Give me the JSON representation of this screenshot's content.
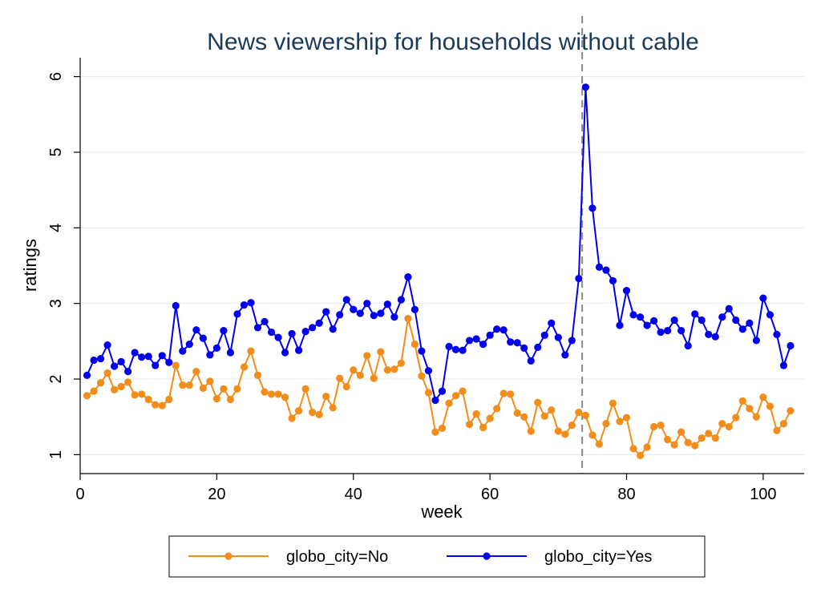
{
  "chart_data": {
    "type": "line",
    "title": "News viewership for households without cable",
    "xlabel": "week",
    "ylabel": "ratings",
    "xlim": [
      0,
      106
    ],
    "ylim": [
      0.75,
      6.25
    ],
    "x_ticks": [
      "0",
      "20",
      "40",
      "60",
      "80",
      "100"
    ],
    "y_ticks": [
      "1",
      "2",
      "3",
      "4",
      "5",
      "6"
    ],
    "grid": "horizontal",
    "legend_position": "bottom",
    "reference_line": {
      "x": 73.5,
      "style": "dashed",
      "color": "#888888"
    },
    "x": [
      1,
      2,
      3,
      4,
      5,
      6,
      7,
      8,
      9,
      10,
      11,
      12,
      13,
      14,
      15,
      16,
      17,
      18,
      19,
      20,
      21,
      22,
      23,
      24,
      25,
      26,
      27,
      28,
      29,
      30,
      31,
      32,
      33,
      34,
      35,
      36,
      37,
      38,
      39,
      40,
      41,
      42,
      43,
      44,
      45,
      46,
      47,
      48,
      49,
      50,
      51,
      52,
      53,
      54,
      55,
      56,
      57,
      58,
      59,
      60,
      61,
      62,
      63,
      64,
      65,
      66,
      67,
      68,
      69,
      70,
      71,
      72,
      73,
      74,
      75,
      76,
      77,
      78,
      79,
      80,
      81,
      82,
      83,
      84,
      85,
      86,
      87,
      88,
      89,
      90,
      91,
      92,
      93,
      94,
      95,
      96,
      97,
      98,
      99,
      100,
      101,
      102,
      103,
      104
    ],
    "series": [
      {
        "name": "globo_city=No",
        "color": "#f28c1a",
        "values": [
          1.78,
          1.84,
          1.95,
          2.08,
          1.86,
          1.9,
          1.96,
          1.79,
          1.8,
          1.73,
          1.66,
          1.65,
          1.73,
          2.18,
          1.92,
          1.92,
          2.1,
          1.88,
          1.97,
          1.74,
          1.87,
          1.73,
          1.87,
          2.16,
          2.37,
          2.05,
          1.83,
          1.8,
          1.8,
          1.76,
          1.48,
          1.58,
          1.87,
          1.56,
          1.53,
          1.77,
          1.62,
          2.01,
          1.9,
          2.12,
          2.05,
          2.31,
          2.01,
          2.36,
          2.12,
          2.13,
          2.21,
          2.8,
          2.46,
          2.04,
          1.82,
          1.3,
          1.35,
          1.68,
          1.78,
          1.84,
          1.4,
          1.54,
          1.36,
          1.48,
          1.61,
          1.81,
          1.8,
          1.55,
          1.5,
          1.31,
          1.69,
          1.51,
          1.59,
          1.31,
          1.27,
          1.39,
          1.56,
          1.52,
          1.26,
          1.14,
          1.41,
          1.68,
          1.44,
          1.49,
          1.08,
          0.99,
          1.1,
          1.37,
          1.39,
          1.2,
          1.13,
          1.3,
          1.16,
          1.12,
          1.22,
          1.28,
          1.22,
          1.41,
          1.37,
          1.49,
          1.71,
          1.61,
          1.5,
          1.76,
          1.64,
          1.32,
          1.41,
          1.58
        ]
      },
      {
        "name": "globo_city=Yes",
        "color": "#0000ee",
        "values": [
          2.05,
          2.25,
          2.27,
          2.45,
          2.17,
          2.23,
          2.1,
          2.35,
          2.29,
          2.3,
          2.18,
          2.31,
          2.22,
          2.97,
          2.37,
          2.46,
          2.65,
          2.54,
          2.32,
          2.41,
          2.64,
          2.35,
          2.86,
          2.98,
          3.01,
          2.68,
          2.76,
          2.62,
          2.55,
          2.35,
          2.6,
          2.38,
          2.63,
          2.68,
          2.74,
          2.89,
          2.66,
          2.85,
          3.05,
          2.92,
          2.87,
          3.0,
          2.84,
          2.87,
          2.99,
          2.82,
          3.05,
          3.35,
          2.92,
          2.37,
          2.11,
          1.72,
          1.84,
          2.43,
          2.39,
          2.38,
          2.51,
          2.53,
          2.46,
          2.58,
          2.66,
          2.65,
          2.49,
          2.48,
          2.41,
          2.24,
          2.42,
          2.58,
          2.74,
          2.55,
          2.32,
          2.51,
          3.33,
          5.86,
          4.26,
          3.48,
          3.44,
          3.3,
          2.71,
          3.17,
          2.85,
          2.82,
          2.71,
          2.77,
          2.62,
          2.64,
          2.78,
          2.64,
          2.44,
          2.86,
          2.78,
          2.59,
          2.56,
          2.82,
          2.93,
          2.78,
          2.66,
          2.74,
          2.51,
          3.07,
          2.85,
          2.59,
          2.18,
          2.44
        ]
      }
    ]
  }
}
